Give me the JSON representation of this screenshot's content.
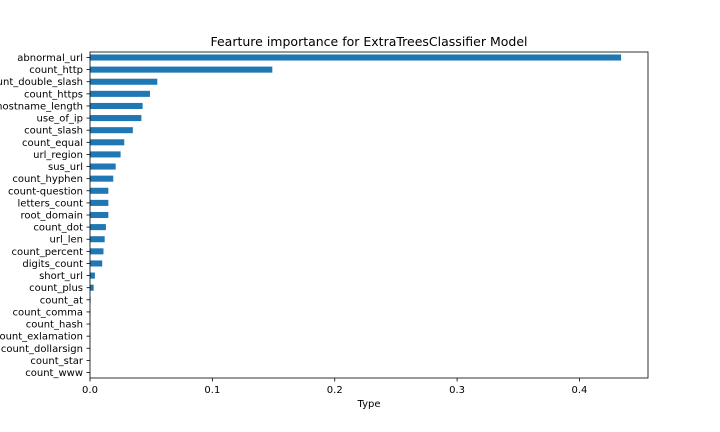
{
  "chart_data": {
    "type": "bar",
    "orientation": "horizontal",
    "title": "Fearture importance for ExtraTreesClassifier Model",
    "xlabel": "Type",
    "ylabel": "",
    "xlim": [
      0,
      0.456
    ],
    "xticks": [
      "0.0",
      "0.1",
      "0.2",
      "0.3",
      "0.4"
    ],
    "xtick_values": [
      0,
      0.1,
      0.2,
      0.3,
      0.4
    ],
    "grid": false,
    "legend": "none",
    "bar_color": "#1f77b4",
    "categories": [
      "abnormal_url",
      "count_http",
      "count_double_slash",
      "count_https",
      "hostname_length",
      "use_of_ip",
      "count_slash",
      "count_equal",
      "url_region",
      "sus_url",
      "count_hyphen",
      "count-question",
      "letters_count",
      "root_domain",
      "count_dot",
      "url_len",
      "count_percent",
      "digits_count",
      "short_url",
      "count_plus",
      "count_at",
      "count_comma",
      "count_hash",
      "count_exlamation",
      "count_dollarsign",
      "count_star",
      "count_www"
    ],
    "values": [
      0.434,
      0.149,
      0.055,
      0.049,
      0.043,
      0.042,
      0.035,
      0.028,
      0.025,
      0.021,
      0.019,
      0.015,
      0.015,
      0.015,
      0.013,
      0.012,
      0.011,
      0.01,
      0.004,
      0.003,
      0.0005,
      0.0003,
      0.0003,
      0.0002,
      0.0002,
      0.0001,
      0.0001
    ]
  }
}
